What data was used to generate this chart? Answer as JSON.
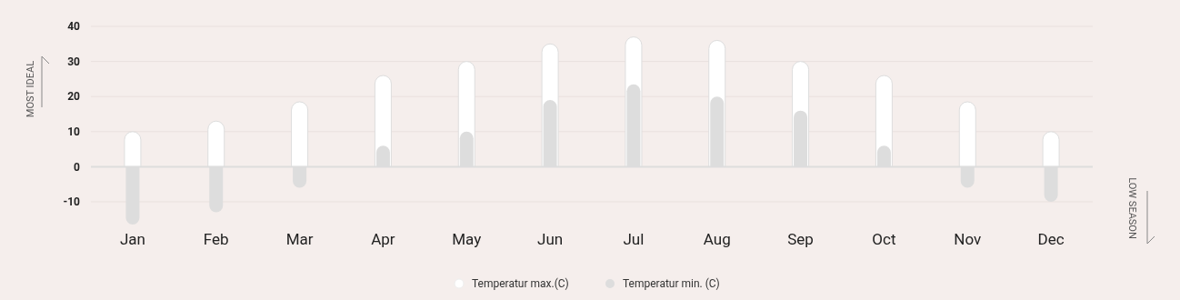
{
  "chart_data": {
    "type": "bar",
    "categories": [
      "Jan",
      "Feb",
      "Mar",
      "Apr",
      "May",
      "Jun",
      "Jul",
      "Aug",
      "Sep",
      "Oct",
      "Nov",
      "Dec"
    ],
    "series": [
      {
        "name": "Temperatur max.(C)",
        "color": "#ffffff",
        "values": [
          10,
          13,
          18.5,
          26,
          30,
          35,
          37,
          36,
          30,
          26,
          18.5,
          10
        ]
      },
      {
        "name": "Temperatur min. (C)",
        "color": "#dddddd",
        "values": [
          -16.5,
          -13,
          -6,
          6,
          10,
          19,
          23.5,
          20,
          16,
          6,
          -6,
          -10
        ]
      }
    ],
    "ylim": [
      -17,
      40
    ],
    "yticks": [
      -10,
      0,
      10,
      20,
      30,
      40
    ],
    "grid": "y",
    "legend": "bottom",
    "annotations": [
      "MOST IDEAL",
      "LOW SEASON"
    ]
  }
}
